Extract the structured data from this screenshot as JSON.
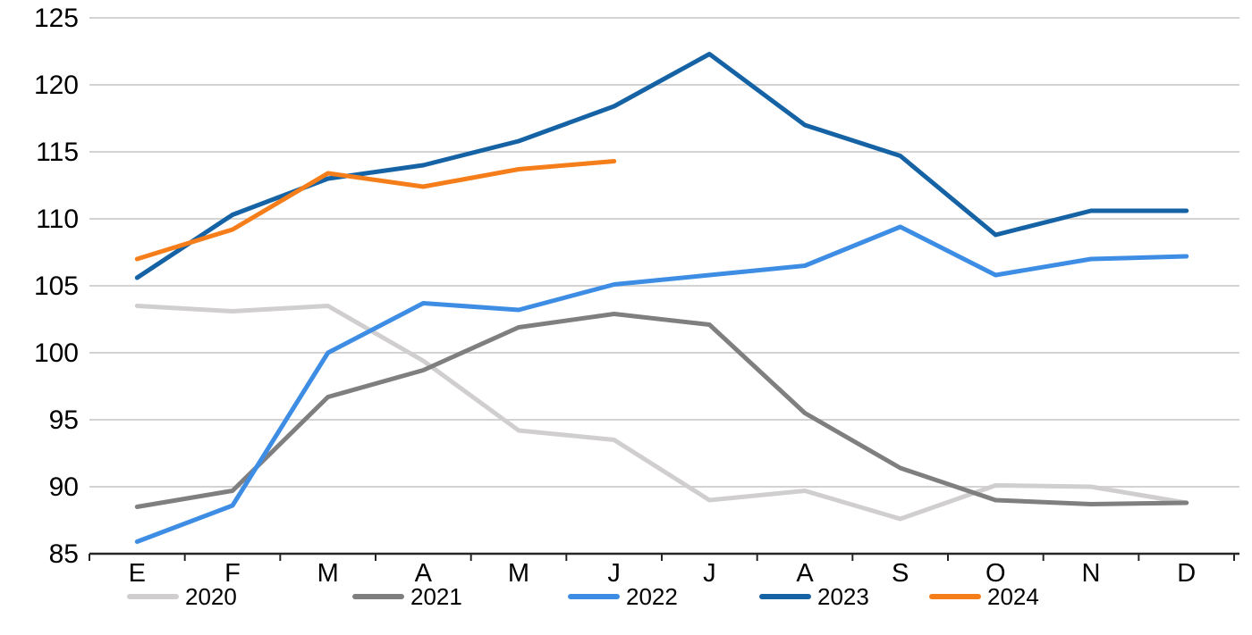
{
  "chart_data": {
    "type": "line",
    "title": "",
    "xlabel": "",
    "ylabel": "",
    "categories": [
      "E",
      "F",
      "M",
      "A",
      "M",
      "J",
      "J",
      "A",
      "S",
      "O",
      "N",
      "D"
    ],
    "y_axis": {
      "min": 85,
      "max": 125,
      "step": 5,
      "tick_labels": [
        "85",
        "90",
        "95",
        "100",
        "105",
        "110",
        "115",
        "120",
        "125"
      ]
    },
    "grid": "horizontal",
    "legend_position": "bottom",
    "series": [
      {
        "name": "2020",
        "color": "#D0CECE",
        "values": [
          103.5,
          103.1,
          103.5,
          99.4,
          94.2,
          93.5,
          89.0,
          89.7,
          87.6,
          90.1,
          90.0,
          88.8
        ]
      },
      {
        "name": "2021",
        "color": "#7F7F7F",
        "values": [
          88.5,
          89.7,
          96.7,
          98.7,
          101.9,
          102.9,
          102.1,
          95.5,
          91.4,
          89.0,
          88.7,
          88.8
        ]
      },
      {
        "name": "2022",
        "color": "#3D8DE5",
        "values": [
          85.9,
          88.6,
          100.0,
          103.7,
          103.2,
          105.1,
          105.8,
          106.5,
          109.4,
          105.8,
          107.0,
          107.2
        ]
      },
      {
        "name": "2023",
        "color": "#1563A5",
        "values": [
          105.6,
          110.3,
          113.0,
          114.0,
          115.8,
          118.4,
          122.3,
          117.0,
          114.7,
          108.8,
          110.6,
          110.6
        ]
      },
      {
        "name": "2024",
        "color": "#F57D1A",
        "values": [
          107.0,
          109.2,
          113.4,
          112.4,
          113.7,
          114.3,
          null,
          null,
          null,
          null,
          null,
          null
        ]
      }
    ]
  }
}
